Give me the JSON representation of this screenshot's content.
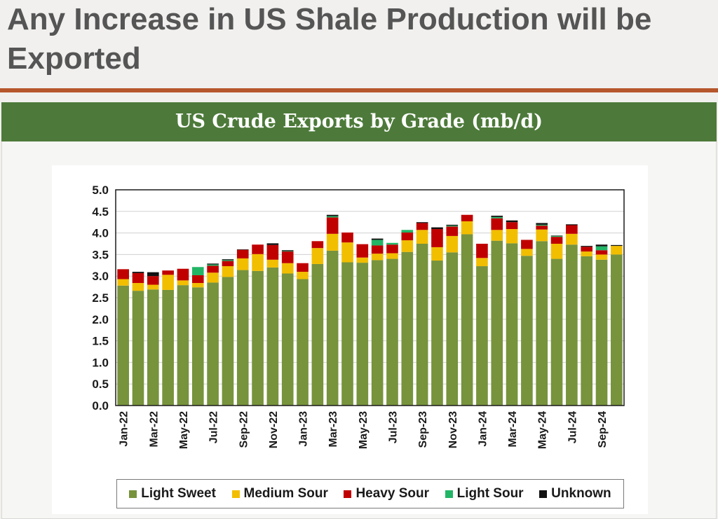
{
  "slide": {
    "title": "Any Increase in US Shale Production will be Exported"
  },
  "chart_data": {
    "type": "bar",
    "stacked": true,
    "title": "US Crude Exports by Grade (mb/d)",
    "xlabel": "",
    "ylabel": "",
    "ylim": [
      0,
      5.0
    ],
    "yticks": [
      "0.0",
      "0.5",
      "1.0",
      "1.5",
      "2.0",
      "2.5",
      "3.0",
      "3.5",
      "4.0",
      "4.5",
      "5.0"
    ],
    "grid": true,
    "legend_position": "bottom",
    "categories": [
      "Jan-22",
      "Feb-22",
      "Mar-22",
      "Apr-22",
      "May-22",
      "Jun-22",
      "Jul-22",
      "Aug-22",
      "Sep-22",
      "Oct-22",
      "Nov-22",
      "Dec-22",
      "Jan-23",
      "Feb-23",
      "Mar-23",
      "Apr-23",
      "May-23",
      "Jun-23",
      "Jul-23",
      "Aug-23",
      "Sep-23",
      "Oct-23",
      "Nov-23",
      "Dec-23",
      "Jan-24",
      "Feb-24",
      "Mar-24",
      "Apr-24",
      "May-24",
      "Jun-24",
      "Jul-24",
      "Aug-24",
      "Sep-24",
      "Oct-24"
    ],
    "tick_labels": [
      "Jan-22",
      "Mar-22",
      "May-22",
      "Jul-22",
      "Sep-22",
      "Nov-22",
      "Jan-23",
      "Mar-23",
      "May-23",
      "Jul-23",
      "Sep-23",
      "Nov-23",
      "Jan-24",
      "Mar-24",
      "May-24",
      "Jul-24",
      "Sep-24"
    ],
    "series": [
      {
        "name": "Light Sweet",
        "color": "#77933c",
        "values": [
          2.78,
          2.66,
          2.69,
          2.68,
          2.79,
          2.74,
          2.85,
          2.98,
          3.14,
          3.12,
          3.2,
          3.06,
          2.93,
          3.28,
          3.59,
          3.32,
          3.31,
          3.37,
          3.4,
          3.56,
          3.75,
          3.36,
          3.55,
          3.97,
          3.23,
          3.82,
          3.76,
          3.47,
          3.81,
          3.4,
          3.73,
          3.46,
          3.38,
          3.5
        ]
      },
      {
        "name": "Medium Sour",
        "color": "#f2be00",
        "values": [
          0.15,
          0.18,
          0.11,
          0.35,
          0.11,
          0.1,
          0.23,
          0.25,
          0.27,
          0.39,
          0.18,
          0.24,
          0.17,
          0.37,
          0.39,
          0.46,
          0.12,
          0.15,
          0.13,
          0.27,
          0.32,
          0.31,
          0.38,
          0.3,
          0.19,
          0.25,
          0.33,
          0.16,
          0.27,
          0.35,
          0.25,
          0.11,
          0.12,
          0.2
        ]
      },
      {
        "name": "Heavy Sour",
        "color": "#c00000",
        "values": [
          0.23,
          0.23,
          0.2,
          0.1,
          0.27,
          0.18,
          0.16,
          0.12,
          0.2,
          0.22,
          0.34,
          0.27,
          0.2,
          0.16,
          0.38,
          0.23,
          0.31,
          0.19,
          0.2,
          0.18,
          0.16,
          0.42,
          0.22,
          0.15,
          0.33,
          0.27,
          0.16,
          0.21,
          0.09,
          0.16,
          0.2,
          0.11,
          0.1,
          0.0
        ]
      },
      {
        "name": "Light Sour",
        "color": "#22b566",
        "values": [
          0.0,
          0.0,
          0.0,
          0.0,
          0.0,
          0.19,
          0.03,
          0.02,
          0.0,
          0.0,
          0.0,
          0.01,
          0.0,
          0.0,
          0.03,
          0.0,
          0.0,
          0.13,
          0.04,
          0.06,
          0.0,
          0.0,
          0.02,
          0.0,
          0.0,
          0.03,
          0.0,
          0.0,
          0.02,
          0.02,
          0.0,
          0.0,
          0.09,
          0.0
        ]
      },
      {
        "name": "Unknown",
        "color": "#111111",
        "values": [
          0.0,
          0.03,
          0.09,
          0.0,
          0.0,
          0.0,
          0.02,
          0.02,
          0.01,
          0.0,
          0.04,
          0.02,
          0.0,
          0.0,
          0.03,
          0.0,
          0.0,
          0.03,
          0.0,
          0.0,
          0.02,
          0.04,
          0.02,
          0.0,
          0.0,
          0.03,
          0.04,
          0.0,
          0.04,
          0.01,
          0.02,
          0.02,
          0.04,
          0.02
        ]
      }
    ]
  }
}
